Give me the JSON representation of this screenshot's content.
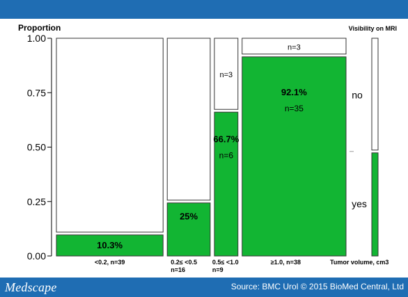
{
  "brand": {
    "logo_text": "Medscape",
    "source": "Source: BMC Urol © 2015 BioMed Central, Ltd"
  },
  "colors": {
    "header": "#1f6db3",
    "yes": "#12b533",
    "no": "#ffffff",
    "outline": "#333333"
  },
  "chart_data": {
    "type": "bar",
    "subtype": "mosaic",
    "ylabel": "Proportion",
    "xlabel": "Tumor volume, cm3",
    "legend_title": "Visibility on MRI",
    "ylim": [
      0,
      1
    ],
    "yticks": [
      "0.00",
      "0.25",
      "0.50",
      "0.75",
      "1.00"
    ],
    "categories": [
      {
        "label": "<0.2, n=39",
        "n": 39
      },
      {
        "label": "0.2≤ <0.5\nn=16",
        "n": 16
      },
      {
        "label": "0.5≤ <1.0\nn=9",
        "n": 9
      },
      {
        "label": "≥1.0, n=38",
        "n": 38
      }
    ],
    "series": [
      {
        "name": "yes",
        "values": [
          0.103,
          0.25,
          0.667,
          0.921
        ]
      },
      {
        "name": "no",
        "values": [
          0.897,
          0.75,
          0.333,
          0.079
        ]
      }
    ],
    "segment_labels": [
      {
        "category": 0,
        "series": "yes",
        "pct": "10.3%",
        "n": ""
      },
      {
        "category": 1,
        "series": "yes",
        "pct": "25%",
        "n": ""
      },
      {
        "category": 2,
        "series": "yes",
        "pct": "66.7%",
        "n": "n=6"
      },
      {
        "category": 2,
        "series": "no",
        "pct": "",
        "n": "n=3"
      },
      {
        "category": 3,
        "series": "yes",
        "pct": "92.1%",
        "n": "n=35"
      },
      {
        "category": 3,
        "series": "no",
        "pct": "",
        "n": "n=3"
      }
    ],
    "legend_entries": [
      "no",
      "yes"
    ],
    "overall_yes": 0.48
  }
}
